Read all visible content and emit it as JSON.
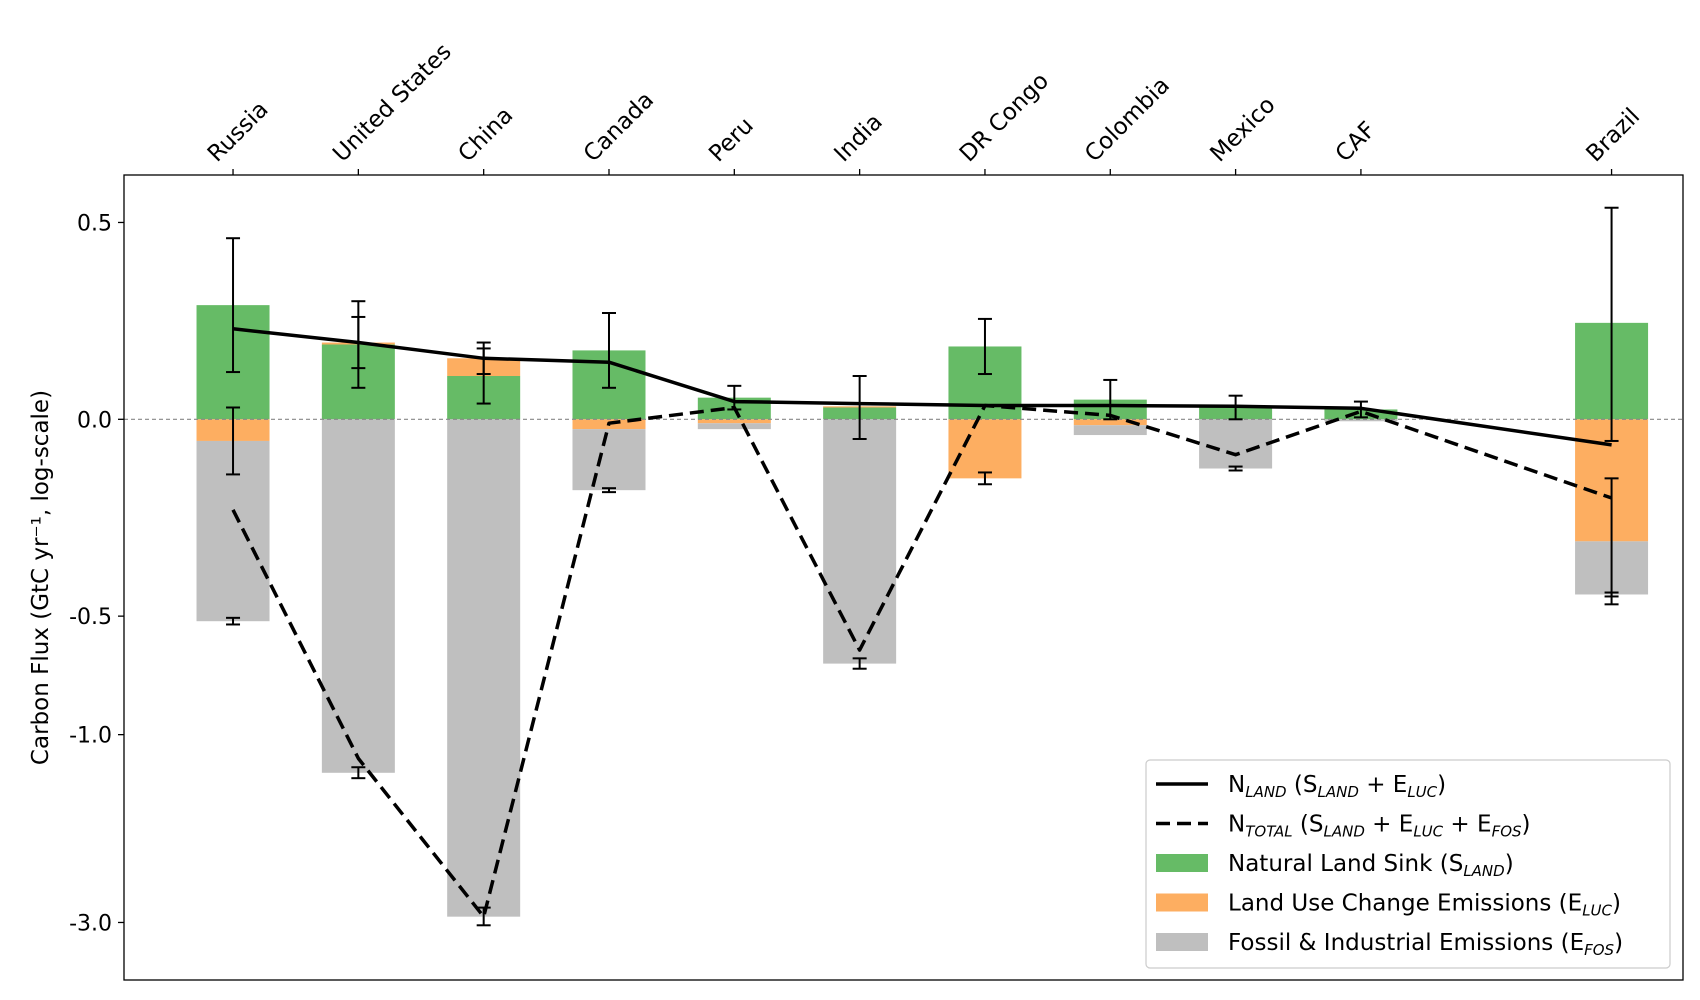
{
  "chart_data": {
    "type": "bar",
    "stacked": true,
    "yscale": "symlog",
    "ylabel": "Carbon Flux (GtC yr⁻¹, log-scale)",
    "xlabel_position": "top",
    "categories": [
      "Russia",
      "United States",
      "China",
      "Canada",
      "Peru",
      "India",
      "DR Congo",
      "Colombia",
      "Mexico",
      "CAF",
      "Brazil"
    ],
    "category_positions": [
      0,
      1,
      2,
      3,
      4,
      5,
      6,
      7,
      8,
      9,
      11
    ],
    "xlim": [
      -0.87,
      11.57
    ],
    "ylim": [
      -4.2,
      0.66
    ],
    "zero_line": "dashed",
    "yticks": [
      {
        "value": 0.5,
        "label": "0.5"
      },
      {
        "value": 0.0,
        "label": "0.0"
      },
      {
        "value": -0.5,
        "label": "-0.5"
      },
      {
        "value": -1.0,
        "label": "-1.0"
      },
      {
        "value": -3.0,
        "label": "-3.0"
      }
    ],
    "series": [
      {
        "name": "Natural Land Sink (S_LAND)",
        "color": "#66bb66",
        "values": [
          0.29,
          0.19,
          0.11,
          0.175,
          0.055,
          0.03,
          0.185,
          0.05,
          0.03,
          0.025,
          0.245
        ],
        "err": [
          0.17,
          0.11,
          0.07,
          0.095,
          0.03,
          0.08,
          0.07,
          0.05,
          0.03,
          0.02,
          0.3
        ]
      },
      {
        "name": "Land Use Change Emissions (E_LUC)",
        "color": "#fdae61",
        "values": [
          -0.055,
          0.005,
          0.045,
          -0.025,
          -0.01,
          0.003,
          -0.15,
          -0.015,
          0.0,
          0.0,
          -0.31
        ],
        "err": [
          0.085,
          0.0,
          0.0,
          0.0,
          0.0,
          0.0,
          0.015,
          0.0,
          0.0,
          0.0,
          0.16
        ]
      },
      {
        "name": "Fossil & Industrial Emissions (E_FOS)",
        "color": "#bfbfbf",
        "values": [
          -0.46,
          -1.25,
          -2.9,
          -0.155,
          -0.015,
          -0.66,
          0.0,
          -0.025,
          -0.125,
          -0.005,
          -0.135
        ],
        "err": [
          0.01,
          0.04,
          0.15,
          0.005,
          0.0,
          0.02,
          0.0,
          0.0,
          0.005,
          0.0,
          0.005
        ]
      }
    ],
    "lines": [
      {
        "name": "N_LAND (S_LAND + E_LUC)",
        "style": "solid",
        "values": [
          0.23,
          0.195,
          0.155,
          0.145,
          0.045,
          0.04,
          0.035,
          0.035,
          0.033,
          0.028,
          -0.065
        ],
        "err": [
          0.0,
          0.065,
          0.04,
          0.0,
          0.0,
          0.0,
          0.0,
          0.0,
          0.0,
          0.0,
          0.0
        ]
      },
      {
        "name": "N_TOTAL (S_LAND + E_LUC + E_FOS)",
        "style": "dashed",
        "values": [
          -0.23,
          -1.15,
          -2.9,
          -0.01,
          0.03,
          -0.61,
          0.035,
          0.01,
          -0.09,
          0.02,
          -0.2
        ],
        "err": [
          0.0,
          0.0,
          0.0,
          0.0,
          0.0,
          0.0,
          0.0,
          0.0,
          0.0,
          0.0,
          0.0
        ]
      }
    ],
    "legend": {
      "placement": "lower-right",
      "entries": [
        {
          "kind": "line",
          "style": "solid",
          "main": "N",
          "sub": "LAND",
          "rest": [
            [
              "t",
              " (S"
            ],
            [
              "s",
              "LAND"
            ],
            [
              "t",
              " + E"
            ],
            [
              "s",
              "LUC"
            ],
            [
              "t",
              ")"
            ]
          ]
        },
        {
          "kind": "line",
          "style": "dashed",
          "main": "N",
          "sub": "TOTAL",
          "rest": [
            [
              "t",
              " (S"
            ],
            [
              "s",
              "LAND"
            ],
            [
              "t",
              " + E"
            ],
            [
              "s",
              "LUC"
            ],
            [
              "t",
              " + E"
            ],
            [
              "s",
              "FOS"
            ],
            [
              "t",
              ")"
            ]
          ]
        },
        {
          "kind": "patch",
          "color": "#66bb66",
          "main": "Natural Land Sink (S",
          "sub": "LAND",
          "rest": [
            [
              "t",
              ")"
            ]
          ]
        },
        {
          "kind": "patch",
          "color": "#fdae61",
          "main": "Land Use Change Emissions (E",
          "sub": "LUC",
          "rest": [
            [
              "t",
              ")"
            ]
          ]
        },
        {
          "kind": "patch",
          "color": "#bfbfbf",
          "main": "Fossil & Industrial Emissions (E",
          "sub": "FOS",
          "rest": [
            [
              "t",
              ")"
            ]
          ]
        }
      ]
    }
  }
}
